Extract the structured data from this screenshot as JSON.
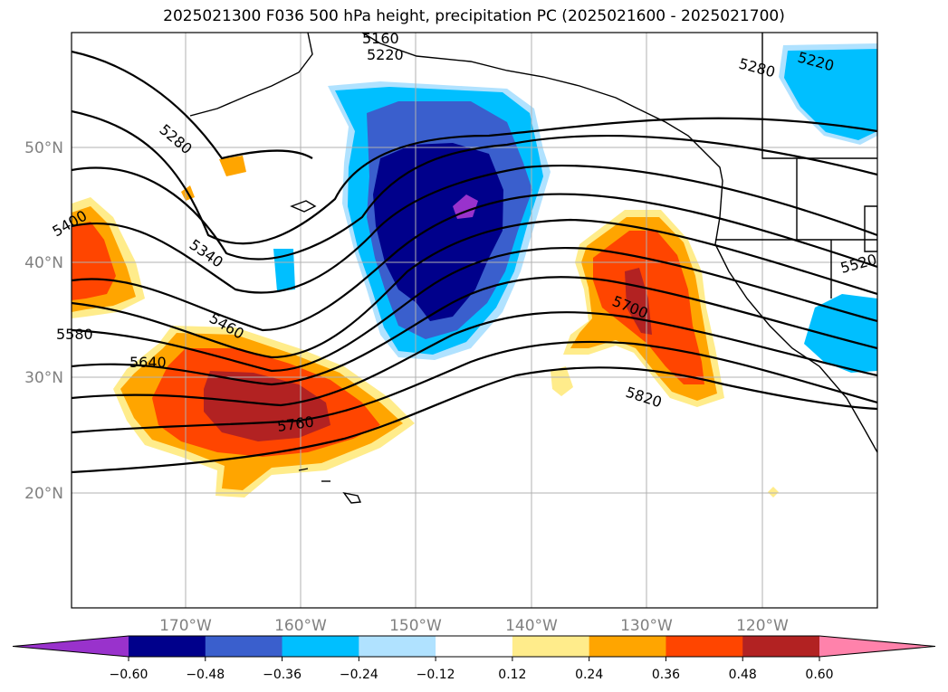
{
  "title": "2025021300 F036 500 hPa height, precipitation PC (2025021600 - 2025021700)",
  "map": {
    "lon_labels": [
      "170°W",
      "160°W",
      "150°W",
      "140°W",
      "130°W",
      "120°W"
    ],
    "lat_labels": [
      "50°N",
      "40°N",
      "30°N",
      "20°N"
    ],
    "contour_labels": [
      "5160",
      "5220",
      "5280",
      "5220",
      "5280",
      "5340",
      "5400",
      "5460",
      "5520",
      "5580",
      "5640",
      "5700",
      "5760",
      "5820"
    ]
  },
  "colorbar": {
    "tick_labels": [
      "−0.60",
      "−0.48",
      "−0.36",
      "−0.24",
      "−0.12",
      "0.12",
      "0.24",
      "0.36",
      "0.48",
      "0.60"
    ],
    "colors": [
      "#9932cc",
      "#00008b",
      "#3a5fcd",
      "#00bfff",
      "#b0e2ff",
      "#ffffff",
      "#ffec8b",
      "#ffa500",
      "#ff4500",
      "#b22222",
      "#ff82ab"
    ]
  }
}
